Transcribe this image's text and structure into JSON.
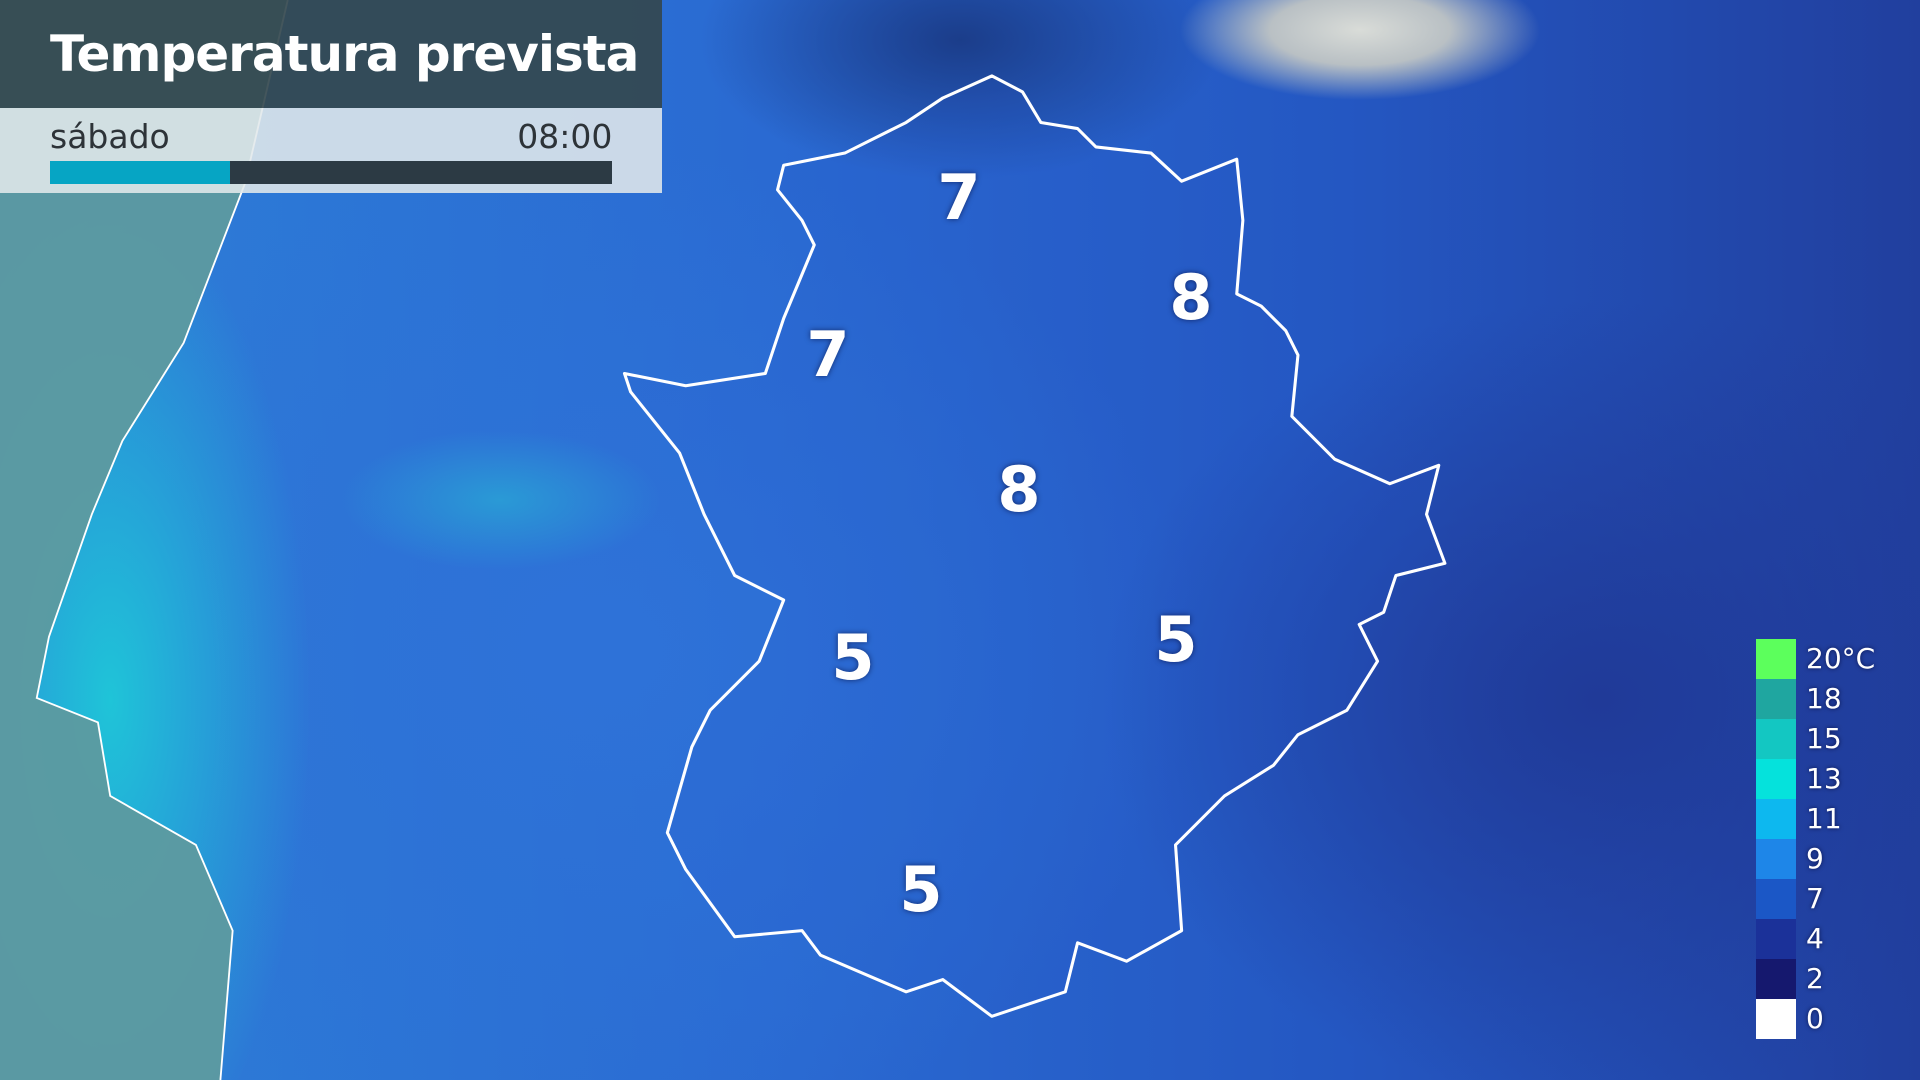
{
  "header": {
    "title": "Temperatura prevista",
    "day": "sábado",
    "time": "08:00",
    "progress_fraction": 0.32,
    "progress_color": "#06a5c4"
  },
  "map": {
    "labels": [
      {
        "value": "7"
      },
      {
        "value": "8"
      },
      {
        "value": "7"
      },
      {
        "value": "8"
      },
      {
        "value": "5"
      },
      {
        "value": "5"
      },
      {
        "value": "5"
      }
    ]
  },
  "legend": {
    "items": [
      {
        "label": "20°C",
        "color": "#5cff5c"
      },
      {
        "label": "18",
        "color": "#1fa6a0"
      },
      {
        "label": "15",
        "color": "#13c7c2"
      },
      {
        "label": "13",
        "color": "#05e2dc"
      },
      {
        "label": "11",
        "color": "#0db8ef"
      },
      {
        "label": "9",
        "color": "#1e86e8"
      },
      {
        "label": "7",
        "color": "#1b57c6"
      },
      {
        "label": "4",
        "color": "#1b3199"
      },
      {
        "label": "2",
        "color": "#15186e"
      },
      {
        "label": "0",
        "color": "#ffffff"
      }
    ]
  }
}
